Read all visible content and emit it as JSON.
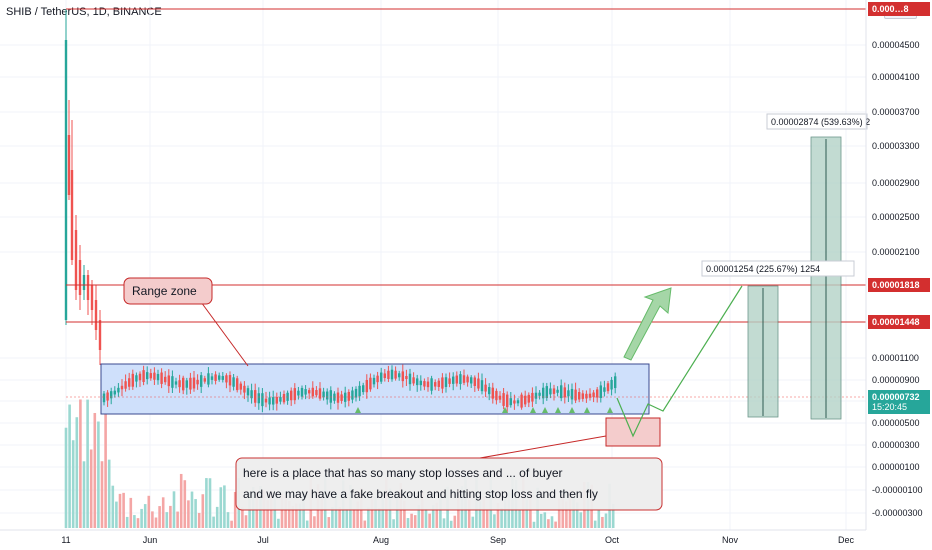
{
  "header": {
    "title": "SHIB / TetherUS, 1D, BINANCE",
    "currency": "USDT"
  },
  "chart_data": {
    "type": "candlestick",
    "y_axis_ticks": [
      "0.00004500",
      "0.00004100",
      "0.00003700",
      "0.00003300",
      "0.00002900",
      "0.00002500",
      "0.00002100",
      "0.00001100",
      "0.00000900",
      "0.00000700",
      "0.00000500",
      "0.00000300",
      "0.00000100",
      "-0.00000100",
      "-0.00000300"
    ],
    "x_axis_ticks": [
      "11",
      "Jun",
      "Jul",
      "Aug",
      "Sep",
      "Oct",
      "Nov",
      "Dec"
    ],
    "last_price": {
      "value": "0.00000732",
      "countdown": "15:20:45"
    },
    "horizontal_levels": [
      {
        "label": "0.00001818",
        "color": "#d32f2f"
      },
      {
        "label": "0.00001448",
        "color": "#d32f2f"
      },
      {
        "label": "0.000…8",
        "color": "#d32f2f"
      }
    ],
    "annotations": {
      "range_zone": "Range zone",
      "stop_loss_note_line1": "here is a place that has so many stop losses and ... of buyer",
      "stop_loss_note_line2": "and we may have a fake breakout and hitting stop loss and then fly",
      "target1": "0.00001254 (225.67%) 1254",
      "target2": "0.00002874 (539.63%) 2"
    },
    "colors": {
      "up": "#26a69a",
      "down": "#ef5350",
      "level": "#d32f2f",
      "range_fill": "#cfe0fb",
      "projection": "#4caf50"
    }
  }
}
